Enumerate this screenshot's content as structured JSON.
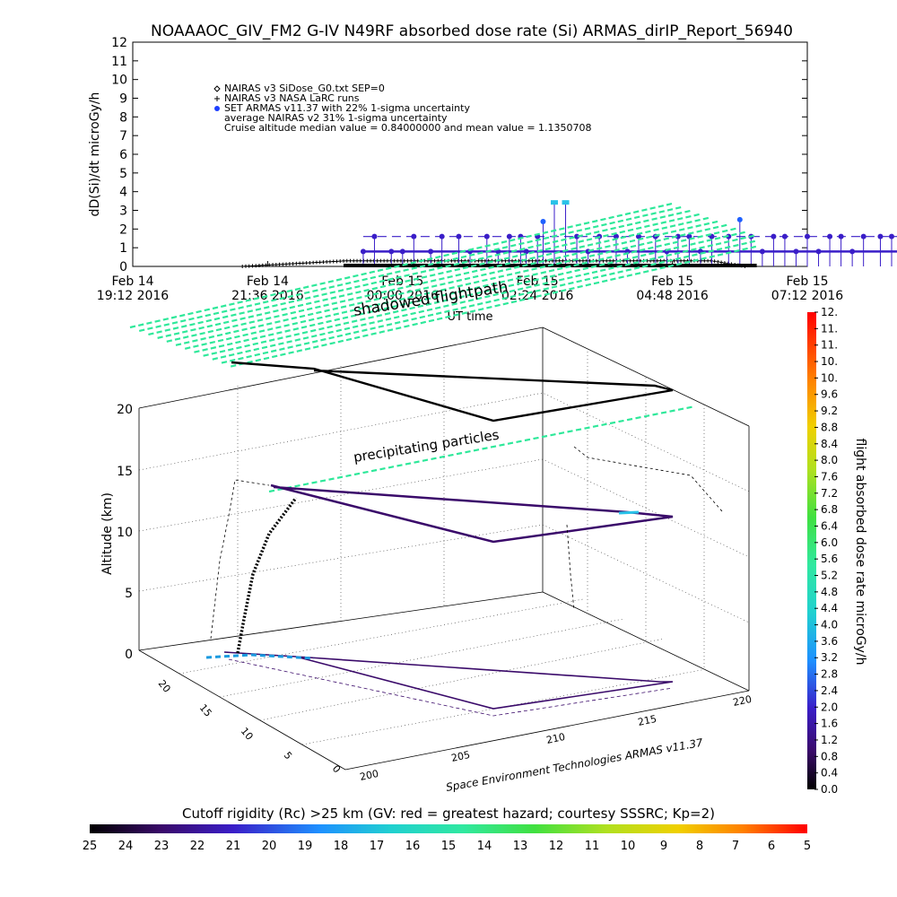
{
  "title": "NOAAAOC_GIV_FM2 G-IV   N49RF  absorbed dose rate (Si) ARMAS_dirIP_Report_56940",
  "chart_data": [
    {
      "type": "scatter",
      "title": "NOAAAOC_GIV_FM2 G-IV   N49RF  absorbed dose rate (Si) ARMAS_dirIP_Report_56940",
      "ylabel": "dD(Si)/dt microGy/h",
      "xlabel": "UT time",
      "ylim": [
        0,
        12
      ],
      "y_ticks": [
        "0",
        "1",
        "2",
        "3",
        "4",
        "5",
        "6",
        "7",
        "8",
        "9",
        "10",
        "11",
        "12"
      ],
      "x_range": [
        "2016-02-14T19:12",
        "2016-02-15T07:12"
      ],
      "x_ticks": [
        {
          "line1": "Feb 14",
          "line2": "19:12 2016"
        },
        {
          "line1": "Feb 14",
          "line2": "21:36 2016"
        },
        {
          "line1": "Feb 15",
          "line2": "00:00 2016"
        },
        {
          "line1": "Feb 15",
          "line2": "02:24 2016"
        },
        {
          "line1": "Feb 15",
          "line2": "04:48 2016"
        },
        {
          "line1": "Feb 15",
          "line2": "07:12 2016"
        }
      ],
      "legend": [
        {
          "symbol": "diamond",
          "text": "NAIRAS v3 SiDose_G0.txt SEP=0"
        },
        {
          "symbol": "plus",
          "text": "NAIRAS v3 NASA LaRC runs"
        },
        {
          "symbol": "dot",
          "text": "SET ARMAS v11.37 with 22% 1-sigma uncertainty"
        },
        {
          "symbol": "none",
          "text": "average NAIRAS v2 31% 1-sigma uncertainty"
        },
        {
          "symbol": "none",
          "text": "Cruise altitude median value = 0.84000000 and mean value = 1.1350708"
        }
      ],
      "legend_position": "top-left",
      "grid": false,
      "series": [
        {
          "name": "SET ARMAS v11.37 with 22% 1-sigma uncertainty",
          "x_hours_since_axis_start": [
            4.1,
            4.3,
            4.6,
            4.8,
            5.0,
            5.3,
            5.5,
            5.8,
            6.0,
            6.3,
            6.5,
            6.7,
            6.9,
            7.0,
            7.2,
            7.3,
            7.5,
            7.7,
            7.9,
            8.1,
            8.3,
            8.6,
            8.8,
            9.0,
            9.3,
            9.5,
            9.7,
            9.9,
            10.1,
            10.3,
            10.6,
            10.8,
            11.0,
            11.2,
            11.4,
            11.6,
            11.8,
            12.0,
            12.2,
            12.4,
            12.6,
            12.8,
            13.0,
            13.3,
            13.5,
            13.7,
            13.9,
            14.1,
            14.3
          ],
          "values": [
            0.8,
            1.6,
            0.8,
            0.8,
            1.6,
            0.8,
            1.6,
            1.6,
            0.8,
            1.6,
            0.8,
            1.6,
            1.6,
            0.8,
            1.6,
            2.4,
            3.4,
            3.4,
            1.6,
            0.8,
            1.6,
            1.6,
            0.8,
            1.6,
            1.6,
            0.8,
            1.6,
            1.6,
            0.8,
            1.6,
            1.6,
            2.5,
            1.6,
            0.8,
            1.6,
            1.6,
            0.8,
            1.6,
            0.8,
            1.6,
            1.6,
            0.8,
            1.6,
            1.6,
            1.6,
            0.8,
            1.6,
            1.6,
            0.8
          ]
        },
        {
          "name": "NAIRAS v3 NASA LaRC runs",
          "profile": "ramps from 0 near 21:06 to 0.3 near 23:00, holds ~0.3 to 05:30, falls to 0 by 06:00"
        }
      ]
    },
    {
      "type": "scatter",
      "subtype": "3d-flight-track",
      "zlabel": "Altitude (km)",
      "z_ticks": [
        "0",
        "5",
        "10",
        "15",
        "20"
      ],
      "zlim": [
        0,
        20
      ],
      "x_ticks": [
        "200",
        "205",
        "210",
        "215",
        "220"
      ],
      "y_ticks": [
        "0",
        "5",
        "10",
        "15",
        "20"
      ],
      "annotations": [
        "shadowed flightpath",
        "precipitating particles",
        "Space Environment Technologies ARMAS v11.37"
      ],
      "colorbar": {
        "label": "flight absorbed dose rate microGy/h",
        "ticks": [
          "0.0",
          "0.4",
          "0.8",
          "1.2",
          "1.6",
          "2.0",
          "2.4",
          "2.8",
          "3.2",
          "3.6",
          "4.0",
          "4.4",
          "4.8",
          "5.2",
          "5.6",
          "6.0",
          "6.4",
          "6.8",
          "7.2",
          "7.6",
          "8.0",
          "8.4",
          "8.8",
          "9.2",
          "9.6",
          "10.",
          "10.",
          "11.",
          "11.",
          "12."
        ]
      },
      "rigidity_bar": {
        "label": "Cutoff rigidity (Rc) >25 km (GV: red = greatest hazard; courtesy SSSRC; Kp=2)",
        "ticks": [
          "25",
          "24",
          "23",
          "22",
          "21",
          "20",
          "19",
          "18",
          "17",
          "16",
          "15",
          "14",
          "13",
          "12",
          "11",
          "10",
          "9",
          "8",
          "7",
          "6",
          "5"
        ]
      }
    }
  ]
}
